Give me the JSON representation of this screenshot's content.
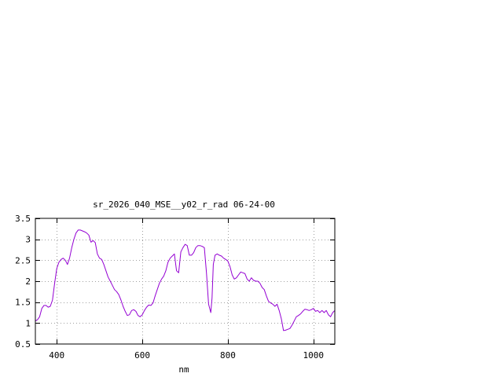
{
  "chart_data": {
    "type": "line",
    "title": "sr_2026_040_MSE__y02_r_rad 06-24-00",
    "xlabel": "nm",
    "ylabel": "",
    "xlim": [
      350,
      1050
    ],
    "ylim": [
      0.5,
      3.5
    ],
    "x_ticks": [
      400,
      600,
      800,
      1000
    ],
    "y_ticks": [
      0.5,
      1,
      1.5,
      2,
      2.5,
      3,
      3.5
    ],
    "grid": true,
    "legend": "none",
    "series": [
      {
        "color": "#9400d3",
        "x": [
          350,
          355,
          360,
          365,
          370,
          375,
          380,
          385,
          390,
          395,
          400,
          405,
          410,
          415,
          420,
          425,
          430,
          435,
          440,
          445,
          450,
          455,
          460,
          465,
          470,
          475,
          480,
          485,
          490,
          495,
          500,
          505,
          510,
          515,
          520,
          525,
          530,
          535,
          540,
          545,
          550,
          555,
          560,
          565,
          570,
          575,
          580,
          585,
          590,
          595,
          600,
          605,
          610,
          615,
          620,
          625,
          630,
          635,
          640,
          645,
          650,
          655,
          660,
          665,
          670,
          675,
          680,
          685,
          690,
          695,
          700,
          705,
          710,
          715,
          720,
          725,
          730,
          735,
          740,
          745,
          750,
          755,
          760,
          763,
          766,
          770,
          775,
          780,
          785,
          790,
          795,
          800,
          805,
          810,
          815,
          820,
          825,
          830,
          835,
          840,
          845,
          850,
          855,
          860,
          865,
          870,
          875,
          880,
          885,
          890,
          895,
          900,
          905,
          910,
          915,
          920,
          925,
          930,
          935,
          940,
          945,
          950,
          955,
          960,
          965,
          970,
          975,
          980,
          985,
          990,
          995,
          1000,
          1005,
          1010,
          1015,
          1020,
          1025,
          1030,
          1035,
          1040,
          1045,
          1050
        ],
        "y": [
          1.05,
          1.08,
          1.15,
          1.35,
          1.42,
          1.42,
          1.38,
          1.4,
          1.55,
          1.95,
          2.3,
          2.45,
          2.52,
          2.55,
          2.5,
          2.4,
          2.55,
          2.8,
          3.0,
          3.15,
          3.22,
          3.22,
          3.2,
          3.18,
          3.15,
          3.1,
          2.93,
          2.97,
          2.92,
          2.65,
          2.55,
          2.52,
          2.4,
          2.25,
          2.1,
          2.0,
          1.9,
          1.8,
          1.75,
          1.68,
          1.55,
          1.4,
          1.28,
          1.18,
          1.2,
          1.3,
          1.32,
          1.28,
          1.18,
          1.15,
          1.2,
          1.3,
          1.38,
          1.43,
          1.42,
          1.48,
          1.65,
          1.8,
          1.95,
          2.05,
          2.12,
          2.25,
          2.45,
          2.55,
          2.6,
          2.65,
          2.25,
          2.2,
          2.7,
          2.8,
          2.88,
          2.85,
          2.62,
          2.62,
          2.68,
          2.8,
          2.85,
          2.85,
          2.83,
          2.8,
          2.2,
          1.45,
          1.25,
          1.6,
          2.4,
          2.62,
          2.65,
          2.62,
          2.6,
          2.55,
          2.52,
          2.48,
          2.35,
          2.15,
          2.05,
          2.08,
          2.15,
          2.22,
          2.2,
          2.18,
          2.05,
          2.0,
          2.08,
          2.02,
          2.0,
          2.0,
          1.95,
          1.85,
          1.8,
          1.65,
          1.52,
          1.48,
          1.45,
          1.4,
          1.45,
          1.3,
          1.1,
          0.82,
          0.83,
          0.85,
          0.87,
          0.95,
          1.05,
          1.15,
          1.18,
          1.22,
          1.28,
          1.33,
          1.32,
          1.3,
          1.32,
          1.35,
          1.28,
          1.3,
          1.25,
          1.3,
          1.25,
          1.3,
          1.2,
          1.15,
          1.25,
          1.3
        ]
      }
    ]
  }
}
